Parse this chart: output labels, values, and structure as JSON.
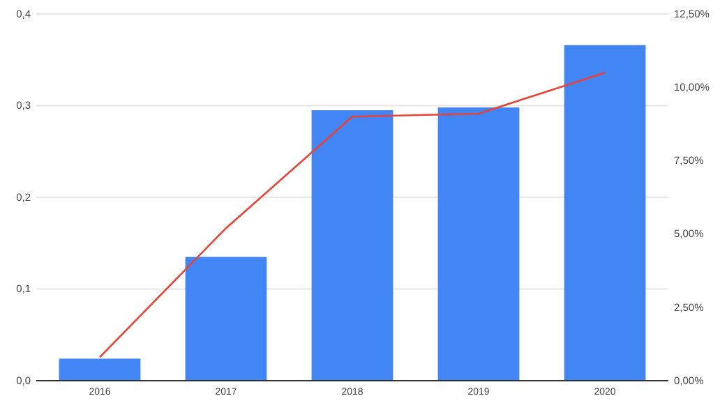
{
  "chart_data": {
    "type": "bar",
    "categories": [
      "2016",
      "2017",
      "2018",
      "2019",
      "2020"
    ],
    "series": [
      {
        "color": "#4285f4",
        "values": [
          0.024,
          0.135,
          0.295,
          0.298,
          0.366
        ]
      },
      {
        "type": "line",
        "axis": "y2",
        "color": "#ea4335",
        "values": [
          0.8,
          5.2,
          9.0,
          9.1,
          10.5
        ]
      }
    ],
    "ylim": [
      0,
      0.4
    ],
    "yticks": [
      {
        "value": 0,
        "label": "0,0"
      },
      {
        "value": 0.1,
        "label": "0,1"
      },
      {
        "value": 0.2,
        "label": "0,2"
      },
      {
        "value": 0.3,
        "label": "0,3"
      },
      {
        "value": 0.4,
        "label": "0,4"
      }
    ],
    "y2lim": [
      0,
      12.5
    ],
    "y2ticks": [
      {
        "value": 0,
        "label": "0,00%"
      },
      {
        "value": 2.5,
        "label": "2,50%"
      },
      {
        "value": 5,
        "label": "5,00%"
      },
      {
        "value": 7.5,
        "label": "7,50%"
      },
      {
        "value": 10,
        "label": "10,00%"
      },
      {
        "value": 12.5,
        "label": "12,50%"
      }
    ],
    "grid": "y",
    "marker": "none",
    "line_style": "solid"
  }
}
